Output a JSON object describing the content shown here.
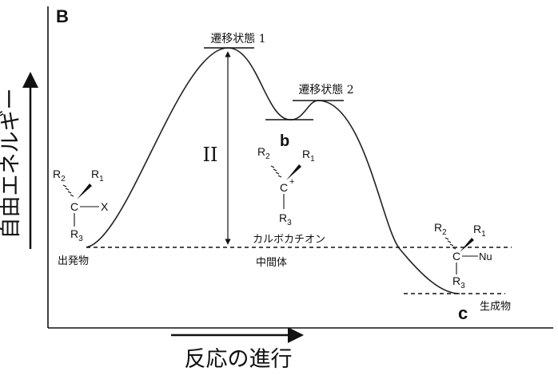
{
  "panel_label": "B",
  "axes": {
    "y_label": "自由エネルギー",
    "x_label": "反応の進行"
  },
  "barrier_label": "II",
  "transition_states": [
    {
      "label": "遷移状態 1"
    },
    {
      "label": "遷移状態 2"
    }
  ],
  "species": {
    "start": {
      "label": "出発物",
      "substituents": {
        "r2": "R",
        "r2_sub": "2",
        "r1": "R",
        "r1_sub": "1",
        "center": "C",
        "group": "X",
        "r3": "R",
        "r3_sub": "3"
      }
    },
    "intermediate": {
      "letter": "b",
      "label_line1": "カルボカチオン",
      "label_line2": "中間体",
      "substituents": {
        "r2": "R",
        "r2_sub": "2",
        "r1": "R",
        "r1_sub": "1",
        "center": "C",
        "charge": "+",
        "r3": "R",
        "r3_sub": "3"
      }
    },
    "product": {
      "letter": "c",
      "label": "生成物",
      "substituents": {
        "r2": "R",
        "r2_sub": "2",
        "r1": "R",
        "r1_sub": "1",
        "center": "C",
        "group": "Nu",
        "r3": "R",
        "r3_sub": "3"
      }
    }
  }
}
